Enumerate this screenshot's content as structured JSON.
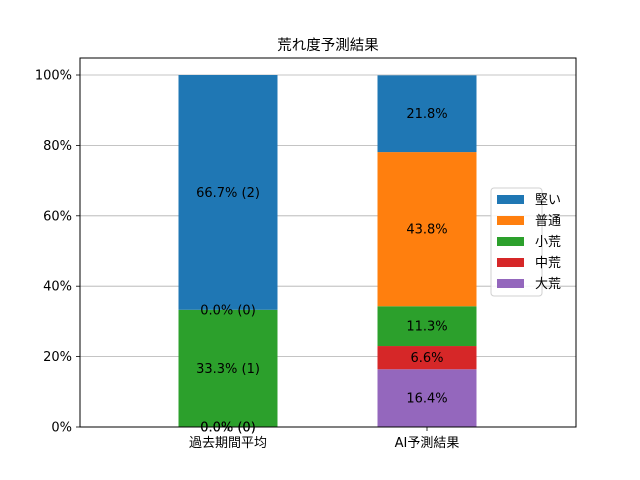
{
  "chart_data": {
    "type": "bar",
    "stacked": true,
    "title": "荒れ度予測結果",
    "xlabel": "",
    "ylabel": "",
    "categories": [
      "過去期間平均",
      "AI予測結果"
    ],
    "ylim": [
      0,
      100
    ],
    "y_ticks": [
      "0%",
      "20%",
      "40%",
      "60%",
      "80%",
      "100%"
    ],
    "grid": "horizontal",
    "legend_position": "right",
    "series": [
      {
        "name": "大荒",
        "color": "#9467bd",
        "values": [
          0.0,
          16.4
        ],
        "labels": [
          "0.0% (0)",
          "16.4%"
        ]
      },
      {
        "name": "中荒",
        "color": "#d62728",
        "values": [
          0.0,
          6.6
        ],
        "labels": [
          "",
          "6.6%"
        ]
      },
      {
        "name": "小荒",
        "color": "#2ca02c",
        "values": [
          33.3,
          11.3
        ],
        "labels": [
          "33.3% (1)",
          "11.3%"
        ]
      },
      {
        "name": "普通",
        "color": "#ff7f0e",
        "values": [
          0.0,
          43.8
        ],
        "labels": [
          "0.0% (0)",
          "43.8%"
        ]
      },
      {
        "name": "堅い",
        "color": "#1f77b4",
        "values": [
          66.7,
          21.8
        ],
        "labels": [
          "66.7% (2)",
          "21.8%"
        ]
      }
    ],
    "legend_order": [
      "堅い",
      "普通",
      "小荒",
      "中荒",
      "大荒"
    ],
    "extra_labels": [
      {
        "category": 0,
        "value": 0.0,
        "text": "0.0% (0)"
      }
    ]
  }
}
